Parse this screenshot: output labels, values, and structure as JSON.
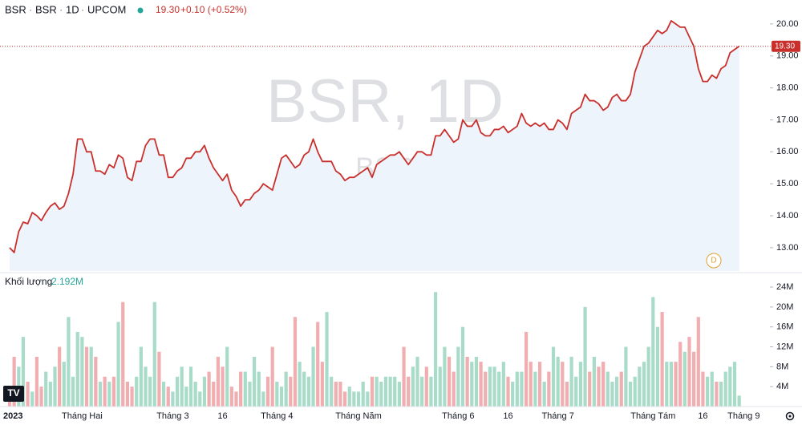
{
  "header": {
    "symbol": "BSR",
    "description": "BSR",
    "interval": "1D",
    "exchange": "UPCOM",
    "change": "+0.10 (+0.52%)"
  },
  "watermark": {
    "title": "BSR, 1D",
    "subtitle": "BSR"
  },
  "marker": "D",
  "logo": "TV",
  "chart_data": {
    "type": "line",
    "categories": [
      "2023",
      null,
      null,
      null,
      null,
      null,
      null,
      null,
      null,
      null,
      null,
      null,
      null,
      null,
      null,
      null,
      "Tháng Hai",
      null,
      null,
      null,
      null,
      null,
      null,
      null,
      null,
      null,
      null,
      null,
      null,
      null,
      null,
      null,
      null,
      null,
      null,
      null,
      "Tháng 3",
      null,
      null,
      null,
      null,
      null,
      null,
      null,
      null,
      null,
      null,
      "16",
      null,
      null,
      null,
      null,
      null,
      null,
      null,
      null,
      null,
      null,
      null,
      "Tháng 4",
      null,
      null,
      null,
      null,
      null,
      null,
      null,
      null,
      null,
      null,
      null,
      null,
      null,
      null,
      null,
      null,
      null,
      "Tháng Năm",
      null,
      null,
      null,
      null,
      null,
      null,
      null,
      null,
      null,
      null,
      null,
      null,
      null,
      null,
      null,
      null,
      null,
      null,
      null,
      null,
      null,
      "Tháng 6",
      null,
      null,
      null,
      null,
      null,
      null,
      null,
      null,
      null,
      null,
      "16",
      null,
      null,
      null,
      null,
      null,
      null,
      null,
      null,
      null,
      null,
      "Tháng 7",
      null,
      null,
      null,
      null,
      null,
      null,
      null,
      null,
      null,
      null,
      null,
      null,
      null,
      null,
      null,
      null,
      null,
      null,
      null,
      null,
      "Tháng Tám",
      null,
      null,
      null,
      null,
      null,
      null,
      null,
      null,
      null,
      null,
      "16",
      null,
      null,
      null,
      null,
      null,
      null,
      null,
      null,
      "Tháng 9"
    ],
    "series": [
      {
        "name": "BSR",
        "color": "#c9302c",
        "area_color": "#eef4fc",
        "values": [
          13.0,
          12.85,
          13.5,
          13.8,
          13.75,
          14.1,
          14.0,
          13.85,
          14.1,
          14.3,
          14.4,
          14.2,
          14.3,
          14.7,
          15.3,
          16.4,
          16.4,
          16.0,
          16.0,
          15.4,
          15.4,
          15.3,
          15.6,
          15.5,
          15.9,
          15.8,
          15.2,
          15.1,
          15.7,
          15.7,
          16.2,
          16.4,
          16.4,
          15.9,
          15.9,
          15.2,
          15.2,
          15.4,
          15.5,
          15.8,
          15.8,
          16.0,
          16.0,
          16.2,
          15.8,
          15.5,
          15.3,
          15.1,
          15.3,
          14.8,
          14.6,
          14.3,
          14.5,
          14.5,
          14.7,
          14.8,
          15.0,
          14.9,
          14.8,
          15.3,
          15.8,
          15.9,
          15.7,
          15.5,
          15.6,
          15.9,
          16.0,
          16.4,
          16.0,
          15.7,
          15.7,
          15.7,
          15.4,
          15.3,
          15.1,
          15.2,
          15.2,
          15.3,
          15.4,
          15.5,
          15.2,
          15.6,
          15.7,
          15.8,
          15.9,
          15.9,
          16.0,
          15.8,
          15.6,
          15.8,
          16.0,
          16.0,
          15.9,
          15.9,
          16.5,
          16.5,
          16.7,
          16.5,
          16.3,
          16.4,
          17.0,
          16.8,
          16.8,
          17.0,
          16.6,
          16.5,
          16.5,
          16.7,
          16.7,
          16.8,
          16.6,
          16.7,
          16.8,
          17.2,
          16.9,
          16.8,
          16.9,
          16.8,
          16.9,
          16.7,
          16.7,
          17.0,
          16.9,
          16.7,
          17.2,
          17.3,
          17.4,
          17.8,
          17.6,
          17.6,
          17.5,
          17.3,
          17.4,
          17.7,
          17.8,
          17.6,
          17.6,
          17.8,
          18.5,
          18.9,
          19.3,
          19.4,
          19.6,
          19.8,
          19.7,
          19.8,
          20.1,
          20.0,
          19.9,
          19.9,
          19.6,
          19.3,
          18.6,
          18.2,
          18.2,
          18.4,
          18.3,
          18.6,
          18.7,
          19.1,
          19.2,
          19.3,
          null
        ]
      }
    ],
    "ylim": [
      12.27,
      20.75
    ],
    "yticks": [
      {
        "value": 13,
        "label": "13.00"
      },
      {
        "value": 14,
        "label": "14.00"
      },
      {
        "value": 15,
        "label": "15.00"
      },
      {
        "value": 16,
        "label": "16.00"
      },
      {
        "value": 17,
        "label": "17.00"
      },
      {
        "value": 18,
        "label": "18.00"
      },
      {
        "value": 19,
        "label": "19.00"
      },
      {
        "value": 20,
        "label": "20.00"
      }
    ],
    "last_price": {
      "value": 19.3,
      "label": "19.30"
    },
    "volume": {
      "name": "Khối lượng",
      "up_color": "#a8dcc9",
      "down_color": "#f1aeb0",
      "readout": {
        "value": 2.192,
        "label": "2.192M"
      },
      "values": [
        2,
        10,
        8,
        14,
        5,
        3,
        10,
        4,
        7,
        5,
        8,
        12,
        9,
        18,
        6,
        15,
        14,
        12,
        12,
        10,
        5,
        6,
        5,
        6,
        17,
        21,
        5,
        4,
        6,
        12,
        8,
        6,
        21,
        11,
        5,
        4,
        3,
        6,
        8,
        4,
        8,
        5,
        3,
        6,
        7,
        5,
        10,
        8,
        12,
        4,
        3,
        7,
        7,
        5,
        10,
        7,
        3,
        6,
        12,
        5,
        4,
        7,
        6,
        18,
        9,
        7,
        6,
        12,
        17,
        9,
        19,
        6,
        5,
        5,
        3,
        4,
        3,
        3,
        5,
        3,
        6,
        6,
        5,
        6,
        6,
        6,
        5,
        12,
        6,
        8,
        10,
        6,
        8,
        6,
        23,
        8,
        12,
        10,
        7,
        12,
        16,
        10,
        9,
        10,
        9,
        7,
        8,
        8,
        7,
        9,
        6,
        5,
        7,
        7,
        15,
        9,
        7,
        9,
        5,
        7,
        12,
        10,
        9,
        5,
        10,
        6,
        9,
        20,
        7,
        10,
        8,
        9,
        7,
        5,
        6,
        7,
        12,
        5,
        6,
        8,
        9,
        12,
        22,
        16,
        19,
        9,
        9,
        9,
        13,
        11,
        14,
        11,
        18,
        7,
        6,
        7,
        5,
        5,
        7,
        8,
        9,
        2.192,
        null
      ],
      "ylim": [
        0,
        26.1
      ],
      "yticks": [
        {
          "value": 4,
          "label": "4M"
        },
        {
          "value": 8,
          "label": "8M"
        },
        {
          "value": 12,
          "label": "12M"
        },
        {
          "value": 16,
          "label": "16M"
        },
        {
          "value": 20,
          "label": "20M"
        },
        {
          "value": 24,
          "label": "24M"
        }
      ]
    }
  }
}
